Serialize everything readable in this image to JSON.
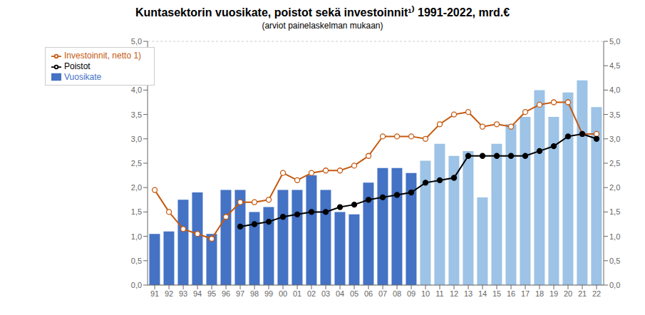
{
  "chart_data": {
    "type": "bar",
    "title": "Kuntasektorin vuosikate, poistot sekä investoinnit¹⁾ 1991-2022, mrd.€",
    "subtitle": "(arviot painelaskelman mukaan)",
    "categories": [
      "91",
      "92",
      "93",
      "94",
      "95",
      "96",
      "97",
      "98",
      "99",
      "00",
      "01",
      "02",
      "03",
      "04",
      "05",
      "06",
      "07",
      "08",
      "09",
      "10",
      "11",
      "12",
      "13",
      "14",
      "15",
      "16",
      "17",
      "18",
      "19",
      "20",
      "21",
      "22"
    ],
    "series": [
      {
        "name": "Vuosikate",
        "type": "bar",
        "color": "#4472C4",
        "colors": [
          "#4472C4",
          "#4472C4",
          "#4472C4",
          "#4472C4",
          "#4472C4",
          "#4472C4",
          "#4472C4",
          "#4472C4",
          "#4472C4",
          "#4472C4",
          "#4472C4",
          "#4472C4",
          "#4472C4",
          "#4472C4",
          "#4472C4",
          "#4472C4",
          "#4472C4",
          "#4472C4",
          "#4472C4",
          "#9DC3E6",
          "#9DC3E6",
          "#9DC3E6",
          "#9DC3E6",
          "#9DC3E6",
          "#9DC3E6",
          "#9DC3E6",
          "#9DC3E6",
          "#9DC3E6",
          "#9DC3E6",
          "#9DC3E6",
          "#9DC3E6",
          "#9DC3E6"
        ],
        "values": [
          1.05,
          1.1,
          1.75,
          1.9,
          1.05,
          1.95,
          1.95,
          1.5,
          1.6,
          1.95,
          1.95,
          2.25,
          1.95,
          1.5,
          1.45,
          2.1,
          2.4,
          2.4,
          2.3,
          2.55,
          2.9,
          2.65,
          2.75,
          1.8,
          2.9,
          3.3,
          3.45,
          4.0,
          3.45,
          3.95,
          4.2,
          3.65
        ]
      },
      {
        "name": "Investoinnit, netto 1)",
        "type": "line",
        "color": "#C55A11",
        "marker": "open_circle",
        "line_style": "solid",
        "values": [
          1.95,
          1.5,
          1.15,
          1.05,
          0.95,
          1.4,
          1.7,
          1.7,
          1.75,
          2.3,
          2.15,
          2.3,
          2.35,
          2.35,
          2.45,
          2.65,
          3.05,
          3.05,
          3.05,
          3.0,
          3.3,
          3.5,
          3.55,
          3.25,
          3.3,
          3.25,
          3.55,
          3.7,
          3.75,
          3.75,
          3.1,
          3.1
        ]
      },
      {
        "name": "Poistot",
        "type": "line",
        "color": "#000000",
        "marker": "circle",
        "line_style": "solid",
        "values": [
          null,
          null,
          null,
          null,
          null,
          null,
          1.2,
          1.25,
          1.3,
          1.4,
          1.45,
          1.5,
          1.5,
          1.6,
          1.65,
          1.75,
          1.8,
          1.85,
          1.9,
          2.1,
          2.15,
          2.2,
          2.65,
          2.65,
          2.65,
          2.65,
          2.65,
          2.75,
          2.85,
          3.05,
          3.1,
          3.0
        ]
      }
    ],
    "ylim": [
      0.0,
      5.0
    ],
    "yticks": [
      {
        "value": 0.0,
        "label": "0,0"
      },
      {
        "value": 0.5,
        "label": "0,5"
      },
      {
        "value": 1.0,
        "label": "1,0"
      },
      {
        "value": 1.5,
        "label": "1,5"
      },
      {
        "value": 2.0,
        "label": "2,0"
      },
      {
        "value": 2.5,
        "label": "2,5"
      },
      {
        "value": 3.0,
        "label": "3,0"
      },
      {
        "value": 3.5,
        "label": "3,5"
      },
      {
        "value": 4.0,
        "label": "4,0"
      },
      {
        "value": 4.5,
        "label": "4,5"
      },
      {
        "value": 5.0,
        "label": "5,0"
      }
    ],
    "y2lim": [
      0.0,
      5.0
    ],
    "y2ticks": [
      {
        "value": 0.0,
        "label": "0,0"
      },
      {
        "value": 0.5,
        "label": "0,5"
      },
      {
        "value": 1.0,
        "label": "1,0"
      },
      {
        "value": 1.5,
        "label": "1,5"
      },
      {
        "value": 2.0,
        "label": "2,0"
      },
      {
        "value": 2.5,
        "label": "2,5"
      },
      {
        "value": 3.0,
        "label": "3,0"
      },
      {
        "value": 3.5,
        "label": "3,5"
      },
      {
        "value": 4.0,
        "label": "4,0"
      },
      {
        "value": 4.5,
        "label": "4,5"
      },
      {
        "value": 5.0,
        "label": "5,0"
      }
    ],
    "grid": true,
    "legend": "upper left"
  }
}
